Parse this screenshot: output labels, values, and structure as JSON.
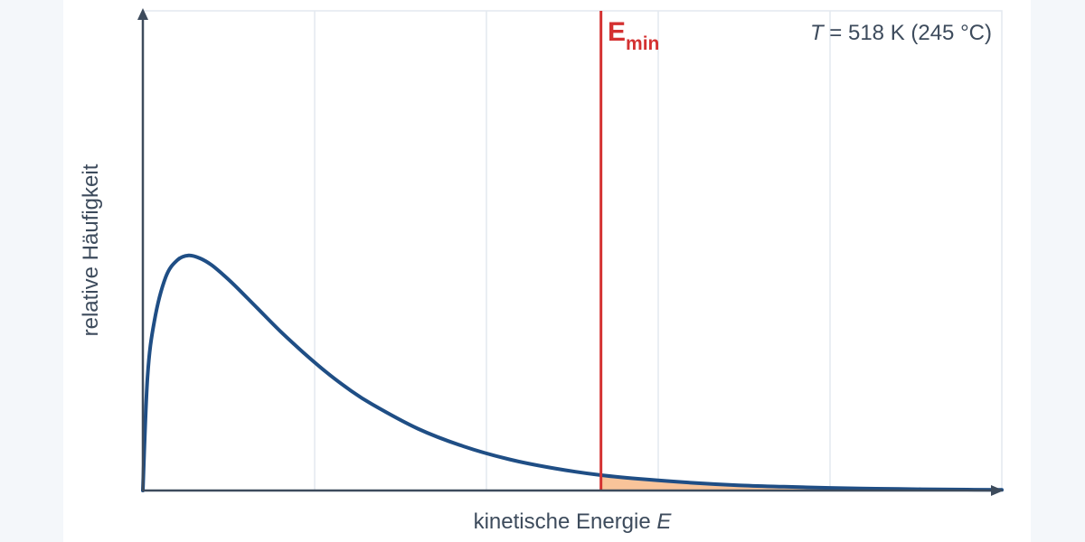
{
  "chart_data": {
    "type": "line",
    "xlabel": "kinetische Energie",
    "xlabel_var": "E",
    "ylabel": "relative Häufigkeit",
    "annotation": {
      "temp_var": "T",
      "temp_text": " = 518 K (245 °C)"
    },
    "threshold": {
      "label_main": "E",
      "label_sub": "min",
      "x": 2.0
    },
    "xlim": [
      0,
      3.75
    ],
    "ylim": [
      0,
      1
    ],
    "x_gridlines": [
      0.75,
      1.5,
      2.25,
      3.0
    ],
    "grid": true,
    "series": [
      {
        "x": [
          0.0,
          0.02,
          0.05,
          0.1,
          0.15,
          0.2,
          0.25,
          0.3,
          0.35,
          0.4,
          0.5,
          0.6,
          0.7,
          0.8,
          0.9,
          1.0,
          1.2,
          1.4,
          1.6,
          1.8,
          2.0,
          2.2,
          2.4,
          2.6,
          2.8,
          3.0,
          3.2,
          3.4,
          3.6,
          3.75
        ],
        "y": [
          0.0,
          0.235,
          0.353,
          0.445,
          0.48,
          0.49,
          0.484,
          0.47,
          0.45,
          0.428,
          0.38,
          0.332,
          0.288,
          0.247,
          0.211,
          0.18,
          0.129,
          0.092,
          0.065,
          0.046,
          0.032,
          0.023,
          0.016,
          0.011,
          0.008,
          0.0055,
          0.0038,
          0.0026,
          0.0018,
          0.0014
        ]
      }
    ],
    "colors": {
      "curve": "#1f4e85",
      "threshold_line": "#d43131",
      "shaded_area": "#f9c49a",
      "axis": "#3d4b5c",
      "grid": "#e3e9ef",
      "text": "#3d4b5c"
    }
  }
}
